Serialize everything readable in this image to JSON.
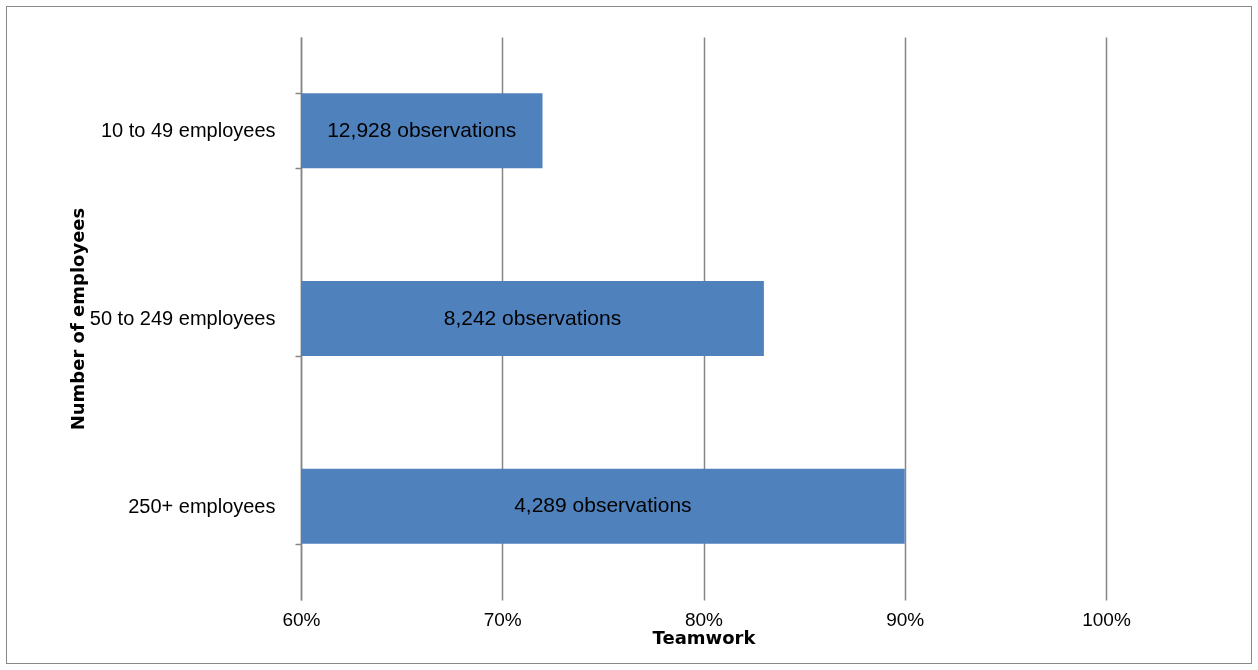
{
  "chart_data": {
    "type": "bar",
    "orientation": "horizontal",
    "xlabel": "Teamwork",
    "ylabel": "Number of employees",
    "categories": [
      "10 to 49 employees",
      "50 to 249 employees",
      "250+ employees"
    ],
    "values": [
      72,
      83,
      90
    ],
    "annotations": [
      "12,928 observations",
      "8,242 observations",
      "4,289 observations"
    ],
    "color": "#4f81bd",
    "xlim": [
      60,
      100
    ],
    "xticks": [
      {
        "value": 60,
        "label": "60%"
      },
      {
        "value": 70,
        "label": "70%"
      },
      {
        "value": 80,
        "label": "80%"
      },
      {
        "value": 90,
        "label": "90%"
      },
      {
        "value": 100,
        "label": "100%"
      }
    ],
    "grid": "x"
  }
}
